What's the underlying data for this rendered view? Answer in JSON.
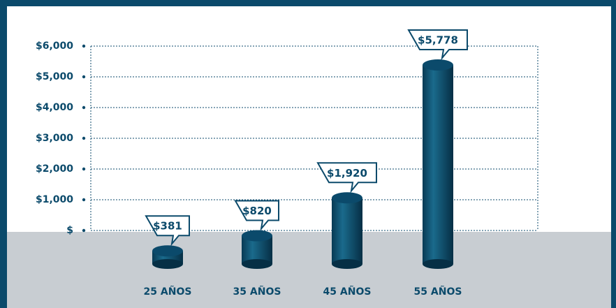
{
  "chart_data": {
    "type": "bar",
    "categories": [
      "25 AÑOS",
      "35 AÑOS",
      "45 AÑOS",
      "55 AÑOS"
    ],
    "values": [
      381,
      820,
      1920,
      5778
    ],
    "value_labels": [
      "$381",
      "$820",
      "$1,920",
      "$5,778"
    ],
    "color": "#0b4a6b",
    "ylim": [
      0,
      6000
    ],
    "yticks": [
      {
        "value": 0,
        "label": "$"
      },
      {
        "value": 1000,
        "label": "$1,000"
      },
      {
        "value": 2000,
        "label": "$2,000"
      },
      {
        "value": 3000,
        "label": "$3,000"
      },
      {
        "value": 4000,
        "label": "$4,000"
      },
      {
        "value": 5000,
        "label": "$5,000"
      },
      {
        "value": 6000,
        "label": "$6,000"
      }
    ],
    "grid": true
  }
}
